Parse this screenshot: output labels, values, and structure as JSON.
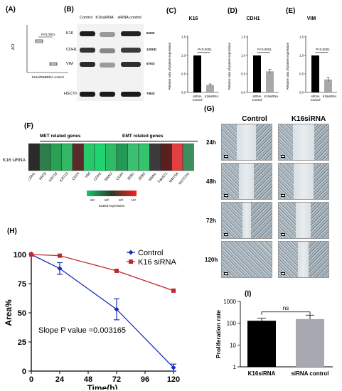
{
  "panelA": {
    "label": "(A)",
    "ylabel": "ΔCt",
    "pvalue": "P<0.0001",
    "categories": [
      "K16siRNA",
      "siRNA control"
    ]
  },
  "panelB": {
    "label": "(B)",
    "headers": [
      "Control",
      "K16siRNA",
      "siRNA control"
    ],
    "rows": [
      {
        "name": "K16",
        "size": "51KD"
      },
      {
        "name": "CDH1",
        "size": "120KD"
      },
      {
        "name": "VIM",
        "size": "57KD"
      },
      {
        "name": "HSC70",
        "size": "70KD"
      }
    ]
  },
  "panelC": {
    "label": "(C)",
    "title": "K16",
    "pvalue": "P<0.0001",
    "ylabel": "Relative ratio of protein expression",
    "categories": [
      "siRNA Control",
      "K16siRNA"
    ]
  },
  "panelD": {
    "label": "(D)",
    "title": "CDH1",
    "pvalue": "P<0.0001",
    "ylabel": "Relative ratio of protein expression",
    "categories": [
      "siRNA Control",
      "K16siRNA"
    ]
  },
  "panelE": {
    "label": "(E)",
    "title": "VIM",
    "pvalue": "P<0.0001",
    "ylabel": "Relative ratio of protein expression",
    "categories": [
      "siRNA Control",
      "K16siRNA"
    ]
  },
  "panelF": {
    "label": "(F)",
    "met_title": "MET related genes",
    "emt_title": "EMT related genes",
    "row_label": "K16 siRNA",
    "genes": [
      "CDH1",
      "KRT8",
      "KRT18",
      "KRT19",
      "CD24",
      "VIM",
      "CDH2",
      "SNAI2",
      "CD44",
      "ZEB1",
      "ZEB2",
      "SNAIL",
      "TWIST1",
      "WNT5A",
      "NOTCH1"
    ],
    "colors": [
      "#2b2b2b",
      "#2e7d4a",
      "#2aa055",
      "#33b864",
      "#5a2a2a",
      "#27c96a",
      "#1fd370",
      "#2dbb66",
      "#229955",
      "#3ac070",
      "#33c46c",
      "#3b3b3b",
      "#5a2020",
      "#e04040",
      "#3d8e5e"
    ],
    "legend_title": "Scaled expression",
    "legend_ticks": [
      "10¹",
      "10²",
      "10³",
      "10⁴"
    ]
  },
  "panelG": {
    "label": "(G)",
    "col_titles": [
      "Control",
      "K16siRNA"
    ],
    "rows": [
      "24h",
      "48h",
      "72h",
      "120h"
    ]
  },
  "panelH": {
    "label": "(H)",
    "annotation": "Slope P value =0.003165",
    "legend": [
      "Control",
      "K16 siRNA"
    ]
  },
  "panelI": {
    "label": "(I)",
    "sig": "ns"
  },
  "chart_data": [
    {
      "id": "C",
      "type": "bar",
      "title": "K16",
      "categories": [
        "siRNA Control",
        "K16siRNA"
      ],
      "values": [
        1.0,
        0.2
      ],
      "errors": [
        0,
        0.03
      ],
      "ylabel": "Relative ratio of protein expression",
      "ylim": [
        0,
        1.5
      ],
      "yticks": [
        "0.0",
        "0.5",
        "1.0",
        "1.5"
      ],
      "colors": [
        "#000000",
        "#a8a8a8"
      ]
    },
    {
      "id": "D",
      "type": "bar",
      "title": "CDH1",
      "categories": [
        "siRNA Control",
        "K16siRNA"
      ],
      "values": [
        1.0,
        0.57
      ],
      "errors": [
        0,
        0.05
      ],
      "ylabel": "Relative ratio of protein expression",
      "ylim": [
        0,
        1.5
      ],
      "yticks": [
        "0.0",
        "0.5",
        "1.0",
        "1.5"
      ],
      "colors": [
        "#000000",
        "#a8a8a8"
      ]
    },
    {
      "id": "E",
      "type": "bar",
      "title": "VIM",
      "categories": [
        "siRNA Control",
        "K16siRNA"
      ],
      "values": [
        1.0,
        0.35
      ],
      "errors": [
        0,
        0.05
      ],
      "ylabel": "Relative ratio of protein expression",
      "ylim": [
        0,
        1.5
      ],
      "yticks": [
        "0.0",
        "0.5",
        "1.0",
        "1.5"
      ],
      "colors": [
        "#000000",
        "#a8a8a8"
      ]
    },
    {
      "id": "H",
      "type": "line",
      "x": [
        0,
        24,
        72,
        120
      ],
      "series": [
        {
          "name": "Control",
          "values": [
            100,
            88,
            53,
            3
          ],
          "errors": [
            0,
            5,
            9,
            3
          ],
          "color": "#1a2fb5",
          "marker": "diamond"
        },
        {
          "name": "K16 siRNA",
          "values": [
            100,
            99,
            86,
            69
          ],
          "errors": [
            0,
            0,
            0,
            0
          ],
          "color": "#c0282d",
          "marker": "square"
        }
      ],
      "xlabel": "Time(h)",
      "ylabel": "Area%",
      "xlim": [
        0,
        120
      ],
      "ylim": [
        0,
        100
      ],
      "xticks": [
        "0",
        "24",
        "48",
        "72",
        "96",
        "120"
      ],
      "yticks": [
        "0",
        "25",
        "50",
        "75",
        "100"
      ],
      "annotation": "Slope P value =0.003165"
    },
    {
      "id": "I",
      "type": "bar",
      "categories": [
        "K16siRNA",
        "siRNA control"
      ],
      "values": [
        130,
        155
      ],
      "errors": [
        40,
        80
      ],
      "ylabel": "Proliferation rate",
      "yscale": "log",
      "ylim": [
        1,
        1000
      ],
      "yticks": [
        "1",
        "10",
        "100",
        "1000"
      ],
      "colors": [
        "#000000",
        "#a8a8b0"
      ]
    }
  ]
}
